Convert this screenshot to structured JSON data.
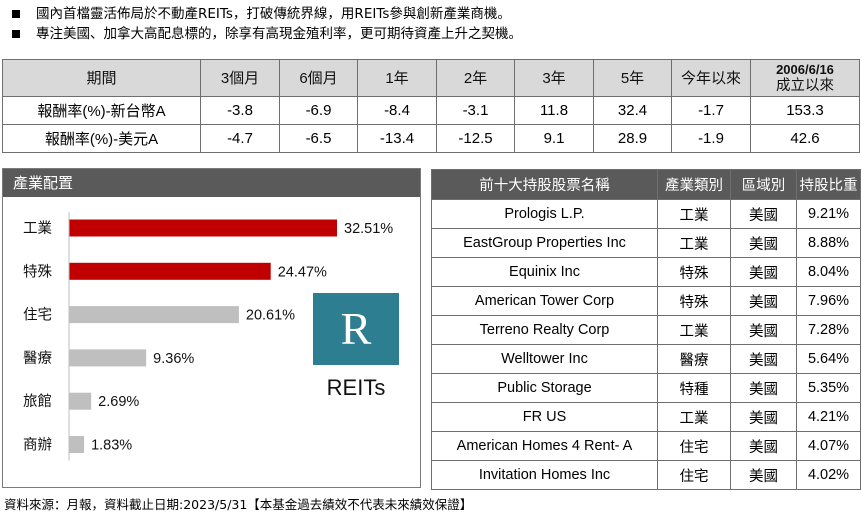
{
  "bullets": [
    "國內首檔靈活佈局於不動產REITs，打破傳統界線，用REITs參與創新產業商機。",
    "專注美國、加拿大高配息標的，除享有高現金殖利率，更可期待資產上升之契機。"
  ],
  "returns_table": {
    "headers": [
      "期間",
      "3個月",
      "6個月",
      "1年",
      "2年",
      "3年",
      "5年",
      "今年以來"
    ],
    "since_inception_date": "2006/6/16",
    "since_inception_label": "成立以來",
    "rows": [
      {
        "label": "報酬率(%)-新台幣A",
        "values": [
          "-3.8",
          "-6.9",
          "-8.4",
          "-3.1",
          "11.8",
          "32.4",
          "-1.7",
          "153.3"
        ]
      },
      {
        "label": "報酬率(%)-美元A",
        "values": [
          "-4.7",
          "-6.5",
          "-13.4",
          "-12.5",
          "9.1",
          "28.9",
          "-1.9",
          "42.6"
        ]
      }
    ]
  },
  "allocation": {
    "title": "產業配置",
    "logo_letter": "R",
    "logo_caption": "REITs",
    "colors": {
      "highlight": "#c00000",
      "normal": "#bfbfbf",
      "logo_bg": "#2e7e91",
      "header_bg": "#5a5a5a"
    }
  },
  "chart_data": {
    "type": "bar",
    "orientation": "horizontal",
    "categories": [
      "工業",
      "特殊",
      "住宅",
      "醫療",
      "旅館",
      "商辦"
    ],
    "values": [
      32.51,
      24.47,
      20.61,
      9.36,
      2.69,
      1.83
    ],
    "labels": [
      "32.51%",
      "24.47%",
      "20.61%",
      "9.36%",
      "2.69%",
      "1.83%"
    ],
    "highlighted": [
      true,
      true,
      false,
      false,
      false,
      false
    ],
    "title": "產業配置",
    "xlabel": "",
    "ylabel": "",
    "grid": false
  },
  "holdings": {
    "headers": [
      "前十大持股股票名稱",
      "產業類別",
      "區域別",
      "持股比重"
    ],
    "rows": [
      [
        "Prologis L.P.",
        "工業",
        "美國",
        "9.21%"
      ],
      [
        "EastGroup Properties Inc",
        "工業",
        "美國",
        "8.88%"
      ],
      [
        "Equinix Inc",
        "特殊",
        "美國",
        "8.04%"
      ],
      [
        "American Tower Corp",
        "特殊",
        "美國",
        "7.96%"
      ],
      [
        "Terreno Realty Corp",
        "工業",
        "美國",
        "7.28%"
      ],
      [
        "Welltower Inc",
        "醫療",
        "美國",
        "5.64%"
      ],
      [
        "Public Storage",
        "特種",
        "美國",
        "5.35%"
      ],
      [
        "FR US",
        "工業",
        "美國",
        "4.21%"
      ],
      [
        "American Homes 4 Rent- A",
        "住宅",
        "美國",
        "4.07%"
      ],
      [
        "Invitation Homes Inc",
        "住宅",
        "美國",
        "4.02%"
      ]
    ]
  },
  "footer": "資料來源：月報，資料截止日期:2023/5/31【本基金過去績效不代表未來績效保證】"
}
